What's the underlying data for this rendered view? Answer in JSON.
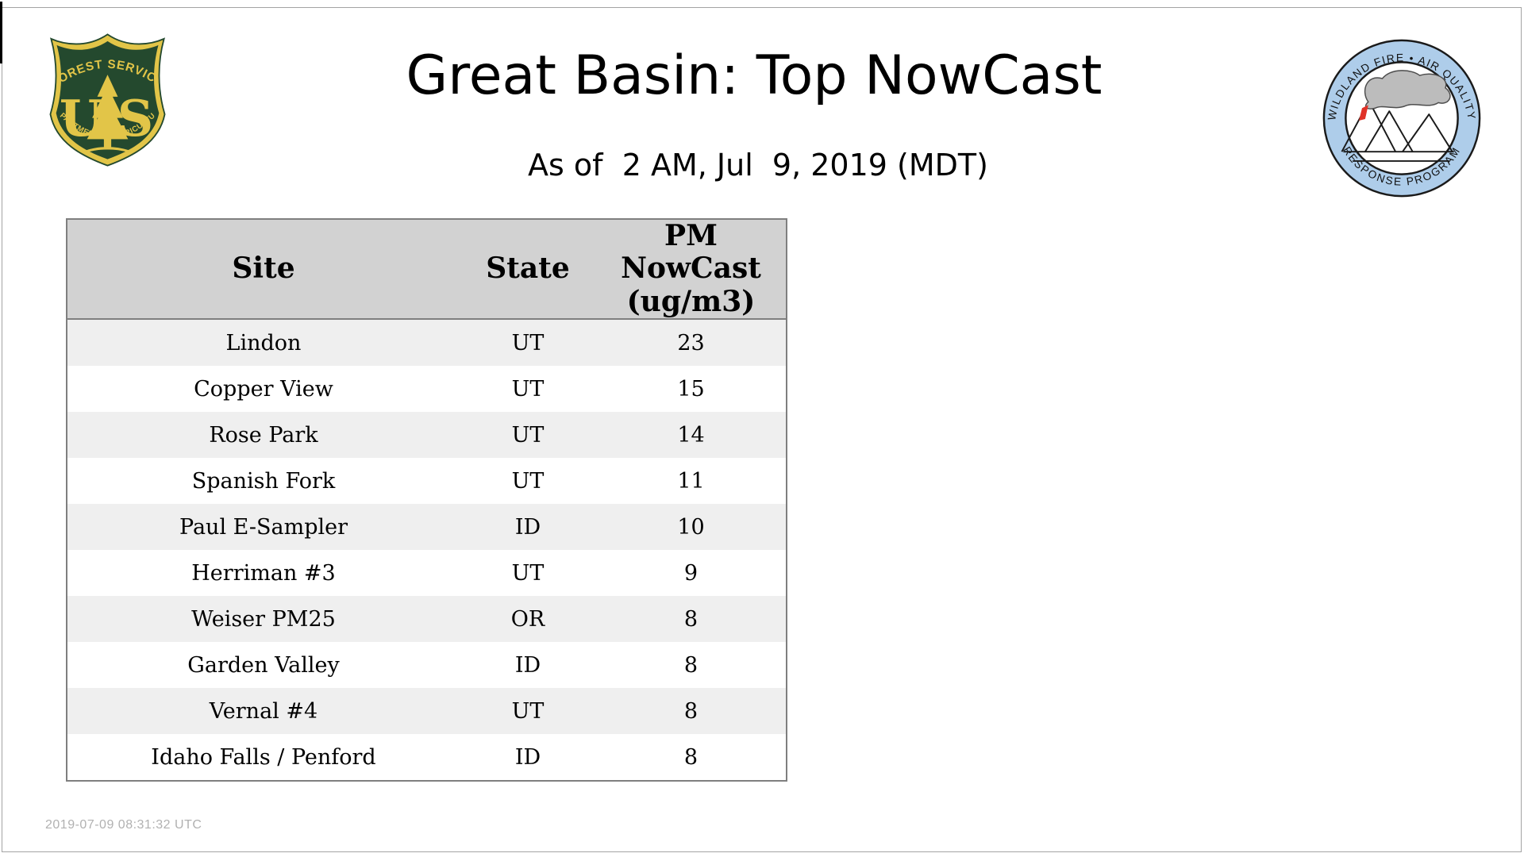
{
  "page": {
    "title": "Great Basin: Top NowCast",
    "subtitle": "As of  2 AM, Jul  9, 2019 (MDT)",
    "footer_timestamp": "2019-07-09 08:31:32 UTC"
  },
  "logos": {
    "forest_service": {
      "top_text": "FOREST SERVICE",
      "bottom_text": "DEPARTMENT OF AGRICULTURE",
      "letter_u": "U",
      "letter_s": "S",
      "colors": {
        "shield_green": "#24492e",
        "gold": "#e2c548"
      }
    },
    "wfaqrp": {
      "top_text": "WILDLAND FIRE • AIR QUALITY",
      "bottom_text": "RESPONSE PROGRAM",
      "colors": {
        "ring_blue": "#aecdea",
        "smoke_gray": "#bcbcbc",
        "flame_red": "#e03127",
        "outline": "#1a1a1a"
      }
    }
  },
  "table": {
    "columns": [
      "Site",
      "State",
      "PM NowCast (ug/m3)"
    ],
    "rows": [
      {
        "site": "Lindon",
        "state": "UT",
        "value": "23"
      },
      {
        "site": "Copper View",
        "state": "UT",
        "value": "15"
      },
      {
        "site": "Rose Park",
        "state": "UT",
        "value": "14"
      },
      {
        "site": "Spanish Fork",
        "state": "UT",
        "value": "11"
      },
      {
        "site": "Paul E-Sampler",
        "state": "ID",
        "value": "10"
      },
      {
        "site": "Herriman #3",
        "state": "UT",
        "value": "9"
      },
      {
        "site": "Weiser PM25",
        "state": "OR",
        "value": "8"
      },
      {
        "site": "Garden Valley",
        "state": "ID",
        "value": "8"
      },
      {
        "site": "Vernal #4",
        "state": "UT",
        "value": "8"
      },
      {
        "site": "Idaho Falls / Penford",
        "state": "ID",
        "value": "8"
      }
    ]
  },
  "chart_data": {
    "type": "table",
    "title": "Great Basin: Top NowCast",
    "subtitle": "As of  2 AM, Jul  9, 2019 (MDT)",
    "columns": [
      "Site",
      "State",
      "PM NowCast (ug/m3)"
    ],
    "categories": [
      "Lindon",
      "Copper View",
      "Rose Park",
      "Spanish Fork",
      "Paul E-Sampler",
      "Herriman #3",
      "Weiser PM25",
      "Garden Valley",
      "Vernal #4",
      "Idaho Falls / Penford"
    ],
    "states": [
      "UT",
      "UT",
      "UT",
      "UT",
      "ID",
      "UT",
      "OR",
      "ID",
      "UT",
      "ID"
    ],
    "values": [
      23,
      15,
      14,
      11,
      10,
      9,
      8,
      8,
      8,
      8
    ]
  }
}
